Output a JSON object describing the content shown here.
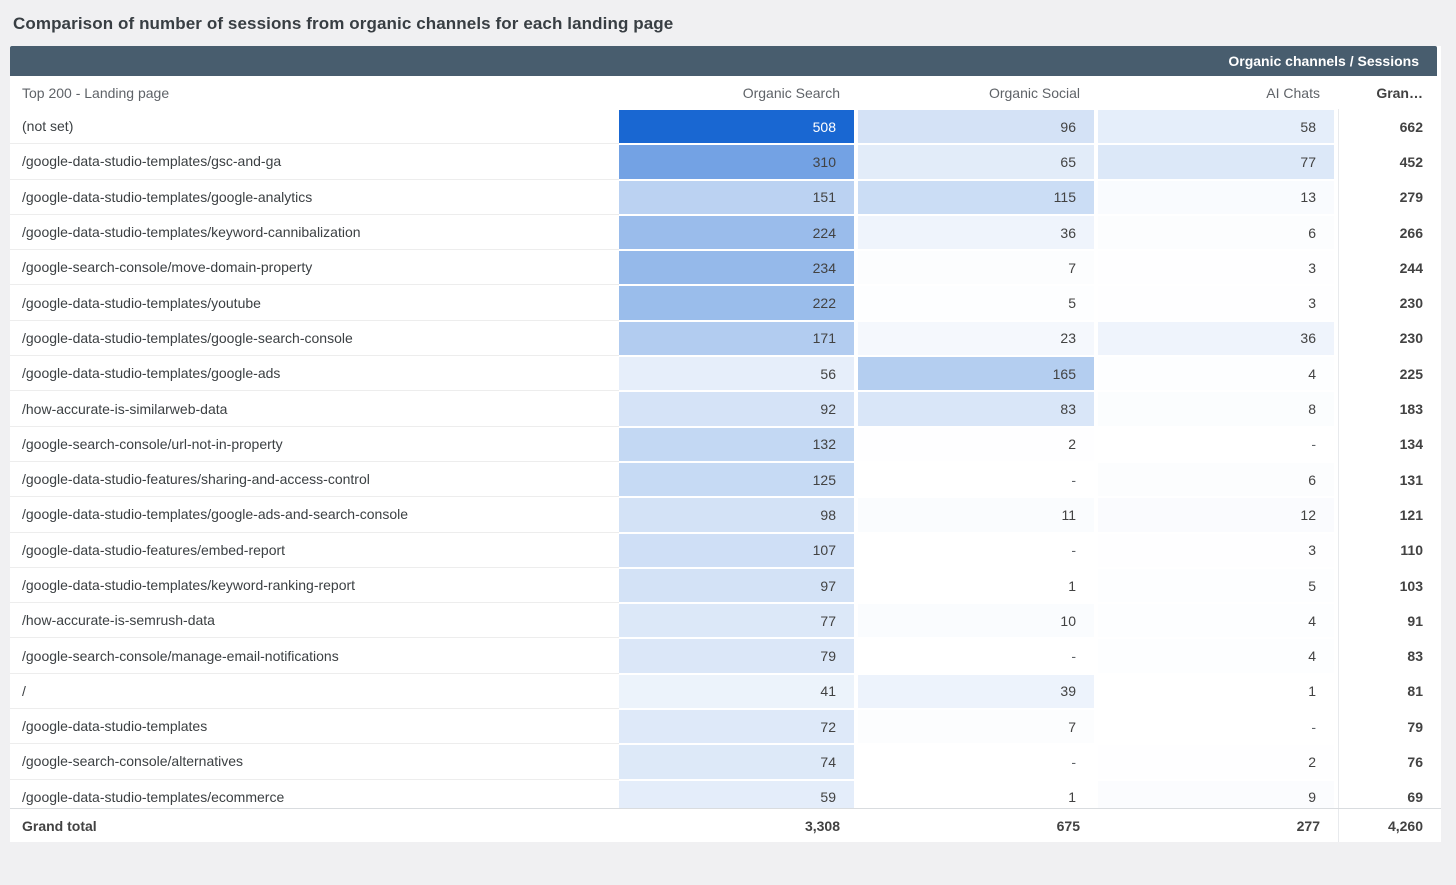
{
  "chart_data": {
    "type": "table",
    "title": "Comparison of number of sessions from organic channels for each landing page",
    "group_header": "Organic channels / Sessions",
    "columns": [
      "Top 200 - Landing page",
      "Organic Search",
      "Organic Social",
      "AI Chats",
      "Gran…"
    ],
    "heatmap": {
      "max_value": 508,
      "accent": "#1967d2",
      "white_text_threshold": 0.8,
      "null_display": "-"
    },
    "rows": [
      {
        "landing_page": "(not set)",
        "organic_search": 508,
        "organic_social": 96,
        "ai_chats": 58,
        "grand_total": 662
      },
      {
        "landing_page": "/google-data-studio-templates/gsc-and-ga",
        "organic_search": 310,
        "organic_social": 65,
        "ai_chats": 77,
        "grand_total": 452
      },
      {
        "landing_page": "/google-data-studio-templates/google-analytics",
        "organic_search": 151,
        "organic_social": 115,
        "ai_chats": 13,
        "grand_total": 279
      },
      {
        "landing_page": "/google-data-studio-templates/keyword-cannibalization",
        "organic_search": 224,
        "organic_social": 36,
        "ai_chats": 6,
        "grand_total": 266
      },
      {
        "landing_page": "/google-search-console/move-domain-property",
        "organic_search": 234,
        "organic_social": 7,
        "ai_chats": 3,
        "grand_total": 244
      },
      {
        "landing_page": "/google-data-studio-templates/youtube",
        "organic_search": 222,
        "organic_social": 5,
        "ai_chats": 3,
        "grand_total": 230
      },
      {
        "landing_page": "/google-data-studio-templates/google-search-console",
        "organic_search": 171,
        "organic_social": 23,
        "ai_chats": 36,
        "grand_total": 230
      },
      {
        "landing_page": "/google-data-studio-templates/google-ads",
        "organic_search": 56,
        "organic_social": 165,
        "ai_chats": 4,
        "grand_total": 225
      },
      {
        "landing_page": "/how-accurate-is-similarweb-data",
        "organic_search": 92,
        "organic_social": 83,
        "ai_chats": 8,
        "grand_total": 183
      },
      {
        "landing_page": "/google-search-console/url-not-in-property",
        "organic_search": 132,
        "organic_social": 2,
        "ai_chats": null,
        "grand_total": 134
      },
      {
        "landing_page": "/google-data-studio-features/sharing-and-access-control",
        "organic_search": 125,
        "organic_social": null,
        "ai_chats": 6,
        "grand_total": 131
      },
      {
        "landing_page": "/google-data-studio-templates/google-ads-and-search-console",
        "organic_search": 98,
        "organic_social": 11,
        "ai_chats": 12,
        "grand_total": 121
      },
      {
        "landing_page": "/google-data-studio-features/embed-report",
        "organic_search": 107,
        "organic_social": null,
        "ai_chats": 3,
        "grand_total": 110
      },
      {
        "landing_page": "/google-data-studio-templates/keyword-ranking-report",
        "organic_search": 97,
        "organic_social": 1,
        "ai_chats": 5,
        "grand_total": 103
      },
      {
        "landing_page": "/how-accurate-is-semrush-data",
        "organic_search": 77,
        "organic_social": 10,
        "ai_chats": 4,
        "grand_total": 91
      },
      {
        "landing_page": "/google-search-console/manage-email-notifications",
        "organic_search": 79,
        "organic_social": null,
        "ai_chats": 4,
        "grand_total": 83
      },
      {
        "landing_page": "/",
        "organic_search": 41,
        "organic_social": 39,
        "ai_chats": 1,
        "grand_total": 81
      },
      {
        "landing_page": "/google-data-studio-templates",
        "organic_search": 72,
        "organic_social": 7,
        "ai_chats": null,
        "grand_total": 79
      },
      {
        "landing_page": "/google-search-console/alternatives",
        "organic_search": 74,
        "organic_social": null,
        "ai_chats": 2,
        "grand_total": 76
      },
      {
        "landing_page": "/google-data-studio-templates/ecommerce",
        "organic_search": 59,
        "organic_social": 1,
        "ai_chats": 9,
        "grand_total": 69
      }
    ],
    "grand_total_row": {
      "label": "Grand total",
      "organic_search": 3308,
      "organic_social": 675,
      "ai_chats": 277,
      "grand_total": 4260
    }
  }
}
